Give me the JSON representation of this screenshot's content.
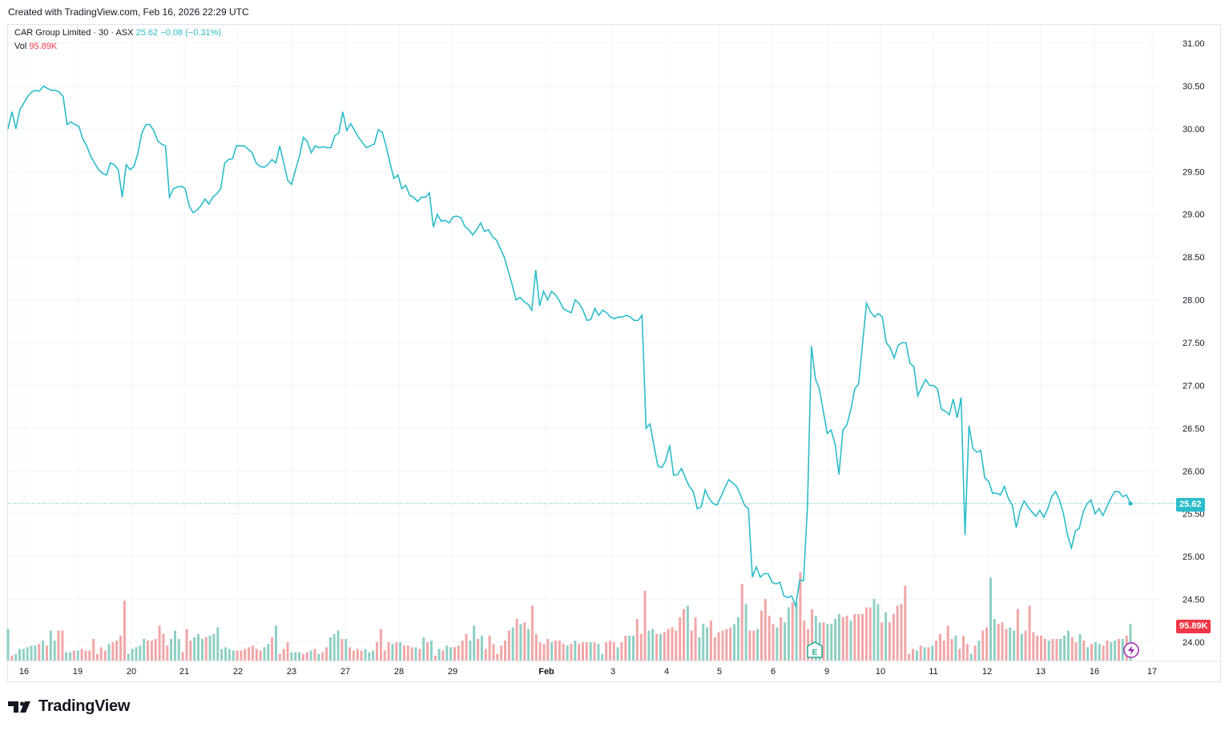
{
  "header": {
    "created_text": "Created with TradingView.com, Feb 16, 2026 22:29 UTC"
  },
  "legend": {
    "symbol": "CAR Group Limited · 30 · ASX",
    "price": "25.62",
    "change": "−0.08 (−0.31%)",
    "vol_label": "Vol",
    "vol_value": "95.89K"
  },
  "badges": {
    "price": "25.62",
    "volume": "95.89K"
  },
  "footer": {
    "brand": "TradingView"
  },
  "colors": {
    "line": "#2bbcc9",
    "vol_up": "#8fcfc4",
    "vol_down": "#f2a6a6",
    "grid": "#f0f3fa",
    "axis_text": "#131722",
    "price_badge": "#2bbcc9",
    "vol_badge": "#f23645"
  },
  "chart_data": {
    "type": "line",
    "series": [
      {
        "name": "CAR Group Limited · 30 · ASX",
        "values": [
          30.0,
          30.2,
          30.0,
          30.22,
          30.3,
          30.38,
          30.43,
          30.45,
          30.44,
          30.5,
          30.47,
          30.45,
          30.45,
          30.43,
          30.38,
          30.05,
          30.08,
          30.05,
          30.03,
          29.88,
          29.8,
          29.68,
          29.6,
          29.52,
          29.48,
          29.46,
          29.6,
          29.58,
          29.52,
          29.2,
          29.58,
          29.52,
          29.56,
          29.72,
          29.95,
          30.05,
          30.05,
          29.98,
          29.86,
          29.82,
          29.8,
          29.2,
          29.3,
          29.32,
          29.33,
          29.3,
          29.1,
          29.02,
          29.05,
          29.1,
          29.18,
          29.12,
          29.2,
          29.24,
          29.3,
          29.6,
          29.64,
          29.65,
          29.8,
          29.8,
          29.8,
          29.76,
          29.72,
          29.6,
          29.56,
          29.55,
          29.58,
          29.64,
          29.6,
          29.8,
          29.6,
          29.4,
          29.35,
          29.52,
          29.68,
          29.9,
          29.85,
          29.72,
          29.8,
          29.78,
          29.79,
          29.78,
          29.78,
          29.92,
          29.95,
          30.2,
          29.98,
          30.06,
          29.98,
          29.9,
          29.84,
          29.78,
          29.8,
          29.82,
          29.99,
          29.96,
          29.8,
          29.6,
          29.42,
          29.46,
          29.3,
          29.34,
          29.22,
          29.2,
          29.15,
          29.2,
          29.2,
          29.25,
          28.85,
          29.0,
          28.92,
          28.93,
          28.9,
          28.97,
          28.98,
          28.96,
          28.86,
          28.82,
          28.76,
          28.82,
          28.9,
          28.8,
          28.82,
          28.74,
          28.7,
          28.6,
          28.5,
          28.34,
          28.18,
          28.0,
          28.03,
          27.98,
          27.95,
          27.88,
          28.35,
          27.93,
          28.1,
          28.0,
          28.1,
          28.06,
          27.99,
          27.9,
          27.87,
          27.85,
          28.0,
          27.96,
          27.88,
          27.76,
          27.77,
          27.9,
          27.82,
          27.88,
          27.85,
          27.8,
          27.78,
          27.8,
          27.8,
          27.82,
          27.8,
          27.76,
          27.76,
          27.82,
          26.5,
          26.55,
          26.3,
          26.06,
          26.04,
          26.12,
          26.3,
          25.95,
          25.96,
          26.03,
          25.92,
          25.82,
          25.76,
          25.56,
          25.58,
          25.78,
          25.68,
          25.62,
          25.6,
          25.7,
          25.8,
          25.9,
          25.86,
          25.82,
          25.72,
          25.6,
          25.56,
          24.76,
          24.88,
          24.76,
          24.8,
          24.8,
          24.7,
          24.68,
          24.7,
          24.54,
          24.52,
          24.54,
          24.42,
          24.72,
          24.72,
          25.6,
          27.46,
          27.08,
          26.96,
          26.7,
          26.44,
          26.48,
          26.32,
          25.96,
          26.48,
          26.54,
          26.72,
          26.96,
          27.02,
          27.5,
          27.96,
          27.86,
          27.8,
          27.84,
          27.8,
          27.5,
          27.44,
          27.32,
          27.47,
          27.5,
          27.5,
          27.26,
          27.22,
          26.88,
          26.98,
          27.07,
          27.0,
          27.0,
          26.96,
          26.72,
          26.7,
          26.66,
          26.84,
          26.62,
          26.86,
          25.25,
          26.53,
          26.26,
          26.22,
          26.24,
          25.92,
          25.88,
          25.74,
          25.74,
          25.72,
          25.82,
          25.68,
          25.6,
          25.34,
          25.54,
          25.65,
          25.58,
          25.52,
          25.47,
          25.54,
          25.46,
          25.56,
          25.7,
          25.76,
          25.66,
          25.5,
          25.26,
          25.1,
          25.3,
          25.33,
          25.52,
          25.62,
          25.66,
          25.5,
          25.56,
          25.48,
          25.58,
          25.68,
          25.76,
          25.76,
          25.7,
          25.72,
          25.62
        ]
      }
    ],
    "volume": {
      "values": [
        1.9,
        0.3,
        0.4,
        0.7,
        0.7,
        0.8,
        0.9,
        0.9,
        1.0,
        1.2,
        0.9,
        1.8,
        1.2,
        1.8,
        1.8,
        0.5,
        0.5,
        0.6,
        0.6,
        0.7,
        0.6,
        0.6,
        1.3,
        0.4,
        0.8,
        0.6,
        1.0,
        1.1,
        1.2,
        1.5,
        3.6,
        0.4,
        0.7,
        0.8,
        0.9,
        1.3,
        1.2,
        1.2,
        1.3,
        2.1,
        1.6,
        0.9,
        1.3,
        1.8,
        1.3,
        0.5,
        1.9,
        1.2,
        1.4,
        1.6,
        1.3,
        1.4,
        1.5,
        1.6,
        2.0,
        0.7,
        0.8,
        0.7,
        0.6,
        0.6,
        0.6,
        0.7,
        0.8,
        0.9,
        0.7,
        0.6,
        0.8,
        1.0,
        1.4,
        2.1,
        0.4,
        0.7,
        1.1,
        0.5,
        0.5,
        0.5,
        0.4,
        0.5,
        0.6,
        0.7,
        0.4,
        0.5,
        0.8,
        1.4,
        1.6,
        1.8,
        1.3,
        1.3,
        0.8,
        0.6,
        0.7,
        0.6,
        0.7,
        0.5,
        0.6,
        1.1,
        1.9,
        0.6,
        1.1,
        1.0,
        1.1,
        1.1,
        0.9,
        0.9,
        0.8,
        0.8,
        0.7,
        1.4,
        1.1,
        1.2,
        0.3,
        0.7,
        0.6,
        0.9,
        0.8,
        0.8,
        0.9,
        1.2,
        1.6,
        1.2,
        2.1,
        1.3,
        1.5,
        0.7,
        1.5,
        1.0,
        0.4,
        0.9,
        1.2,
        1.8,
        2.0,
        2.5,
        2.2,
        2.3,
        1.9,
        3.3,
        1.6,
        1.1,
        1.0,
        1.3,
        1.1,
        1.2,
        1.2,
        1.0,
        0.9,
        1.0,
        1.2,
        1.0,
        1.1,
        1.1,
        1.1,
        1.1,
        1.0,
        0.4,
        1.1,
        1.2,
        1.1,
        0.8,
        1.1,
        1.5,
        1.5,
        1.5,
        2.5,
        1.6,
        4.2,
        1.8,
        1.9,
        1.6,
        1.6,
        1.7,
        1.9,
        2.0,
        1.8,
        2.6,
        3.1,
        3.3,
        1.8,
        2.6,
        1.4,
        2.2,
        2.0,
        2.4,
        1.4,
        1.7,
        1.8,
        1.9,
        2.0,
        2.2,
        2.6,
        4.6,
        3.4,
        1.8,
        1.8,
        1.9,
        3.0,
        3.7,
        2.7,
        2.2,
        2.0,
        2.6,
        2.3,
        3.2,
        3.5,
        3.5,
        5.3,
        2.4,
        1.9,
        3.1,
        2.7,
        2.3,
        2.3,
        2.2,
        2.2,
        2.5,
        2.8,
        2.6,
        2.7,
        2.4,
        2.8,
        2.8,
        2.8,
        3.2,
        3.2,
        3.7,
        3.4,
        2.3,
        2.9,
        2.3,
        2.8,
        3.3,
        3.4,
        4.5,
        0.4,
        0.7,
        0.6,
        0.9,
        0.8,
        0.8,
        0.9,
        1.2,
        1.6,
        1.2,
        2.1,
        1.3,
        1.5,
        0.7,
        1.5,
        1.0,
        0.4,
        0.9,
        1.2,
        1.8,
        2.0,
        5.0,
        2.5,
        2.2,
        2.3,
        1.9,
        2.0,
        1.8,
        3.1,
        1.6,
        1.8,
        3.3,
        1.7,
        1.5,
        1.5,
        1.3,
        1.2,
        1.3,
        1.3,
        1.3,
        1.5,
        1.8,
        1.4,
        1.1,
        1.6,
        1.2,
        0.8,
        1.0,
        1.1,
        1.0,
        0.9,
        1.2,
        1.1,
        1.2,
        1.3,
        1.3,
        1.5,
        2.2
      ],
      "up": [
        1,
        0,
        1,
        1,
        1,
        1,
        1,
        1,
        0,
        1,
        0,
        1,
        1,
        0,
        0,
        1,
        1,
        0,
        1,
        0,
        0,
        0,
        0,
        0,
        0,
        0,
        1,
        0,
        0,
        0,
        0,
        1,
        1,
        1,
        1,
        1,
        0,
        0,
        0,
        0,
        0,
        0,
        1,
        1,
        1,
        0,
        0,
        0,
        1,
        1,
        1,
        0,
        1,
        1,
        1,
        1,
        1,
        1,
        1,
        0,
        0,
        0,
        0,
        0,
        0,
        0,
        1,
        1,
        0,
        1,
        0,
        0,
        0,
        1,
        1,
        1,
        0,
        0,
        1,
        0,
        1,
        0,
        0,
        1,
        1,
        1,
        0,
        1,
        0,
        0,
        0,
        0,
        1,
        1,
        1,
        0,
        0,
        0,
        0,
        1,
        0,
        1,
        0,
        0,
        0,
        1,
        0,
        1,
        0,
        1,
        0,
        1,
        0,
        1,
        1,
        0,
        0,
        0,
        0,
        1,
        1,
        0,
        1,
        0,
        0,
        0,
        0,
        0,
        0,
        0,
        1,
        0,
        1,
        0,
        1,
        0,
        0,
        0,
        0,
        0,
        1,
        0,
        0,
        0,
        1,
        0,
        1,
        0,
        0,
        0,
        1,
        0,
        1,
        1,
        0,
        0,
        0,
        1,
        0,
        0,
        1,
        1,
        0,
        0,
        0,
        1,
        1,
        0,
        1,
        0,
        0,
        0,
        0,
        0,
        0,
        1,
        0,
        0,
        1,
        1,
        1,
        0,
        0,
        0,
        0,
        0,
        0,
        1,
        1,
        0,
        1,
        0,
        0,
        1,
        0,
        0,
        0,
        0,
        1,
        0,
        1,
        1,
        0,
        1,
        0,
        0,
        0,
        0,
        1,
        1,
        0,
        1,
        1,
        1,
        1,
        0,
        0,
        1,
        0,
        0,
        0,
        0,
        0,
        1,
        1,
        0,
        1,
        0,
        0,
        0,
        0,
        0,
        0,
        0,
        1,
        0,
        1,
        0,
        1,
        0,
        0,
        0,
        0,
        0,
        1,
        0,
        0,
        0,
        1,
        0,
        1,
        0,
        0,
        1,
        1,
        0,
        0,
        0,
        1,
        1,
        0,
        1,
        0,
        0,
        0,
        0,
        0,
        0,
        1,
        0,
        0,
        1,
        1,
        1,
        0,
        0,
        1,
        0,
        1,
        0,
        1,
        1,
        0,
        0,
        1,
        1,
        0,
        1,
        0,
        1,
        0,
        1,
        1
      ]
    },
    "x_ticks": [
      "16",
      "19",
      "20",
      "21",
      "22",
      "23",
      "27",
      "28",
      "29",
      "Feb",
      "3",
      "4",
      "5",
      "6",
      "9",
      "10",
      "11",
      "12",
      "13",
      "16",
      "17"
    ],
    "y_ticks": [
      "31.00",
      "30.50",
      "30.00",
      "29.50",
      "29.00",
      "28.50",
      "28.00",
      "27.50",
      "27.00",
      "26.50",
      "26.00",
      "25.50",
      "25.00",
      "24.50",
      "24.00"
    ],
    "ylim": [
      23.78,
      31.0
    ],
    "last_price": 25.62,
    "events": [
      {
        "label": "E",
        "x_tick": "9"
      }
    ]
  }
}
